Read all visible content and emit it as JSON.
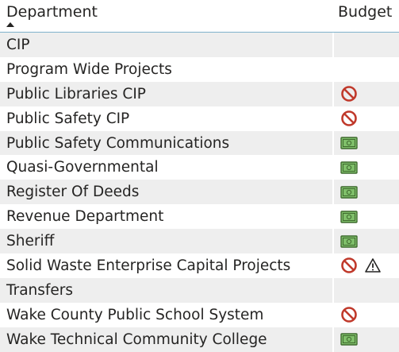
{
  "header": {
    "department_label": "Department",
    "budget_label": "Budget"
  },
  "rows": [
    {
      "department": "CIP",
      "icons": []
    },
    {
      "department": "Program Wide Projects",
      "icons": []
    },
    {
      "department": "Public Libraries CIP",
      "icons": [
        "no-entry-icon"
      ]
    },
    {
      "department": "Public Safety CIP",
      "icons": [
        "no-entry-icon"
      ]
    },
    {
      "department": "Public Safety Communications",
      "icons": [
        "money-icon"
      ]
    },
    {
      "department": "Quasi-Governmental",
      "icons": [
        "money-icon"
      ]
    },
    {
      "department": "Register Of Deeds",
      "icons": [
        "money-icon"
      ]
    },
    {
      "department": "Revenue Department",
      "icons": [
        "money-icon"
      ]
    },
    {
      "department": "Sheriff",
      "icons": [
        "money-icon"
      ]
    },
    {
      "department": "Solid Waste Enterprise Capital Projects",
      "icons": [
        "no-entry-icon",
        "warning-icon"
      ]
    },
    {
      "department": "Transfers",
      "icons": []
    },
    {
      "department": "Wake County Public School System",
      "icons": [
        "no-entry-icon"
      ]
    },
    {
      "department": "Wake Technical Community College",
      "icons": [
        "money-icon"
      ]
    }
  ],
  "colors": {
    "header_border": "#7fb2cc",
    "shaded_row": "#eeeeee",
    "no_entry": "#c0392b",
    "money_fill": "#7fbf6a",
    "money_border": "#3f6a2e"
  }
}
